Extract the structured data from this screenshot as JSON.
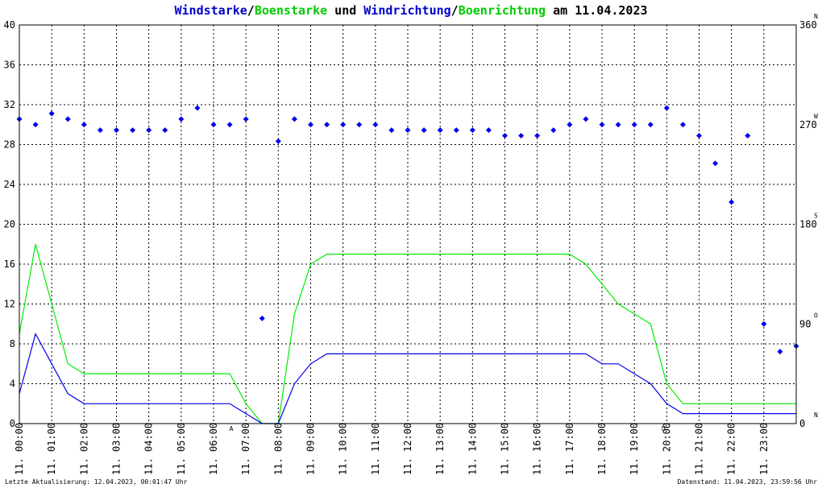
{
  "chart_data": {
    "type": "line",
    "title": {
      "parts": [
        {
          "text": "Windstarke",
          "color": "#0000cc"
        },
        {
          "text": "/",
          "color": "#000000"
        },
        {
          "text": "Boenstarke",
          "color": "#00cc00"
        },
        {
          "text": " und ",
          "color": "#000000"
        },
        {
          "text": "Windrichtung",
          "color": "#0000cc"
        },
        {
          "text": "/",
          "color": "#000000"
        },
        {
          "text": "Boenrichtung",
          "color": "#00cc00"
        },
        {
          "text": " am 11.04.2023",
          "color": "#000000"
        }
      ]
    },
    "footer_left": "Letzte Aktualisierung: 12.04.2023, 00:01:47 Uhr",
    "footer_right": "Datenstand: 11.04.2023, 23:59:56 Uhr",
    "x_range": [
      0,
      24
    ],
    "x_ticks": [
      "11. 00:00",
      "11. 01:00",
      "11. 02:00",
      "11. 03:00",
      "11. 04:00",
      "11. 05:00",
      "11. 06:00",
      "11. 07:00",
      "11. 08:00",
      "11. 09:00",
      "11. 10:00",
      "11. 11:00",
      "11. 12:00",
      "11. 13:00",
      "11. 14:00",
      "11. 15:00",
      "11. 16:00",
      "11. 17:00",
      "11. 18:00",
      "11. 19:00",
      "11. 20:00",
      "11. 21:00",
      "11. 22:00",
      "11. 23:00"
    ],
    "y_left": {
      "range": [
        0,
        40
      ],
      "ticks": [
        0,
        4,
        8,
        12,
        16,
        20,
        24,
        28,
        32,
        36,
        40
      ]
    },
    "y_right": {
      "range": [
        0,
        360
      ],
      "ticks": [
        0,
        90,
        180,
        270,
        360
      ],
      "directions": [
        {
          "label": "N",
          "value": 0
        },
        {
          "label": "O",
          "value": 90
        },
        {
          "label": "S",
          "value": 180
        },
        {
          "label": "W",
          "value": 270
        },
        {
          "label": "N",
          "value": 360
        }
      ]
    },
    "markers": [
      {
        "label": "A",
        "x": 6.55
      },
      {
        "label": "U",
        "x": 19.9
      }
    ],
    "grid": true,
    "colors": {
      "wind": "#0000ee",
      "gust": "#00ee00",
      "frame": "#000000",
      "marker": "#cc0000"
    },
    "series": [
      {
        "name": "Windstarke",
        "x": [
          0,
          0.5,
          1,
          1.5,
          2,
          2.5,
          3,
          3.5,
          4,
          4.5,
          5,
          5.5,
          6,
          6.5,
          7,
          7.5,
          8,
          8.5,
          9,
          9.5,
          10,
          10.5,
          11,
          11.5,
          12,
          12.5,
          13,
          13.5,
          14,
          14.5,
          15,
          15.5,
          16,
          16.5,
          17,
          17.5,
          18,
          18.5,
          19,
          19.5,
          20,
          20.5,
          21,
          21.5,
          22,
          22.5,
          23,
          23.5,
          24
        ],
        "values": [
          3,
          9,
          6,
          3,
          2,
          2,
          2,
          2,
          2,
          2,
          2,
          2,
          2,
          2,
          1,
          0,
          0,
          4,
          6,
          7,
          7,
          7,
          7,
          7,
          7,
          7,
          7,
          7,
          7,
          7,
          7,
          7,
          7,
          7,
          7,
          7,
          6,
          6,
          5,
          4,
          2,
          1,
          1,
          1,
          1,
          1,
          1,
          1,
          1
        ]
      },
      {
        "name": "Boenstarke",
        "x": [
          0,
          0.5,
          1,
          1.5,
          2,
          2.5,
          3,
          3.5,
          4,
          4.5,
          5,
          5.5,
          6,
          6.5,
          7,
          7.5,
          8,
          8.5,
          9,
          9.5,
          10,
          10.5,
          11,
          11.5,
          12,
          12.5,
          13,
          13.5,
          14,
          14.5,
          15,
          15.5,
          16,
          16.5,
          17,
          17.5,
          18,
          18.5,
          19,
          19.5,
          20,
          20.5,
          21,
          21.5,
          22,
          22.5,
          23,
          23.5,
          24
        ],
        "values": [
          9,
          18,
          12,
          6,
          5,
          5,
          5,
          5,
          5,
          5,
          5,
          5,
          5,
          5,
          2,
          0,
          0,
          11,
          16,
          17,
          17,
          17,
          17,
          17,
          17,
          17,
          17,
          17,
          17,
          17,
          17,
          17,
          17,
          17,
          17,
          16,
          14,
          12,
          11,
          10,
          4,
          2,
          2,
          2,
          2,
          2,
          2,
          2,
          2
        ]
      },
      {
        "name": "Windrichtung",
        "x": [
          0,
          0.5,
          1,
          1.5,
          2,
          2.5,
          3,
          3.5,
          4,
          4.5,
          5,
          5.5,
          6,
          6.5,
          7,
          7.5,
          8,
          8.5,
          9,
          9.5,
          10,
          10.5,
          11,
          11.5,
          12,
          12.5,
          13,
          13.5,
          14,
          14.5,
          15,
          15.5,
          16,
          16.5,
          17,
          17.5,
          18,
          18.5,
          19,
          19.5,
          20,
          20.5,
          21,
          21.5,
          22,
          22.5,
          23,
          23.5,
          24
        ],
        "values": [
          275,
          270,
          280,
          275,
          270,
          265,
          265,
          265,
          265,
          265,
          275,
          285,
          270,
          270,
          275,
          95,
          255,
          275,
          270,
          270,
          270,
          270,
          270,
          265,
          265,
          265,
          265,
          265,
          265,
          265,
          260,
          260,
          260,
          265,
          270,
          275,
          270,
          270,
          270,
          270,
          285,
          270,
          260,
          235,
          200,
          260,
          90,
          65,
          70
        ]
      }
    ]
  }
}
